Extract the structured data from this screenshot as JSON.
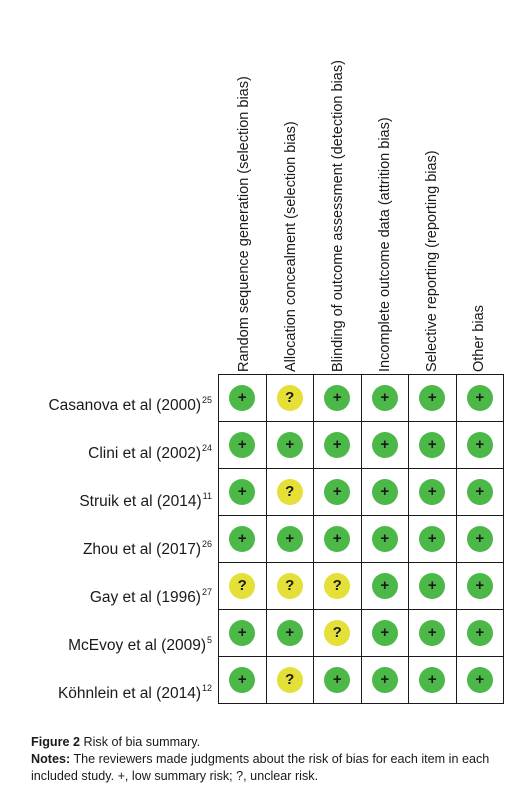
{
  "figure": {
    "columns": [
      "Random sequence generation (selection bias)",
      "Allocation concealment (selection bias)",
      "Blinding of outcome assessment (detection bias)",
      "Incomplete outcome data (attrition bias)",
      "Selective reporting (reporting bias)",
      "Other bias"
    ],
    "rows": [
      {
        "study": "Casanova et al (2000)",
        "ref": "25",
        "judgments": [
          "+",
          "?",
          "+",
          "+",
          "+",
          "+"
        ]
      },
      {
        "study": "Clini et al (2002)",
        "ref": "24",
        "judgments": [
          "+",
          "+",
          "+",
          "+",
          "+",
          "+"
        ]
      },
      {
        "study": "Struik et al (2014)",
        "ref": "11",
        "judgments": [
          "+",
          "?",
          "+",
          "+",
          "+",
          "+"
        ]
      },
      {
        "study": "Zhou et al (2017)",
        "ref": "26",
        "judgments": [
          "+",
          "+",
          "+",
          "+",
          "+",
          "+"
        ]
      },
      {
        "study": "Gay et al (1996)",
        "ref": "27",
        "judgments": [
          "?",
          "?",
          "?",
          "+",
          "+",
          "+"
        ]
      },
      {
        "study": "McEvoy et al (2009)",
        "ref": "5",
        "judgments": [
          "+",
          "+",
          "?",
          "+",
          "+",
          "+"
        ]
      },
      {
        "study": "Köhnlein et al (2014)",
        "ref": "12",
        "judgments": [
          "+",
          "?",
          "+",
          "+",
          "+",
          "+"
        ]
      }
    ],
    "colors": {
      "low_risk": "#4cb848",
      "unclear_risk": "#e4e038"
    }
  },
  "caption": {
    "label": "Figure 2",
    "title": " Risk of bia summary.",
    "notes_label": "Notes:",
    "notes_text": " The reviewers made judgments about the risk of bias for each item in each included study. +, low summary risk; ?, unclear risk."
  }
}
